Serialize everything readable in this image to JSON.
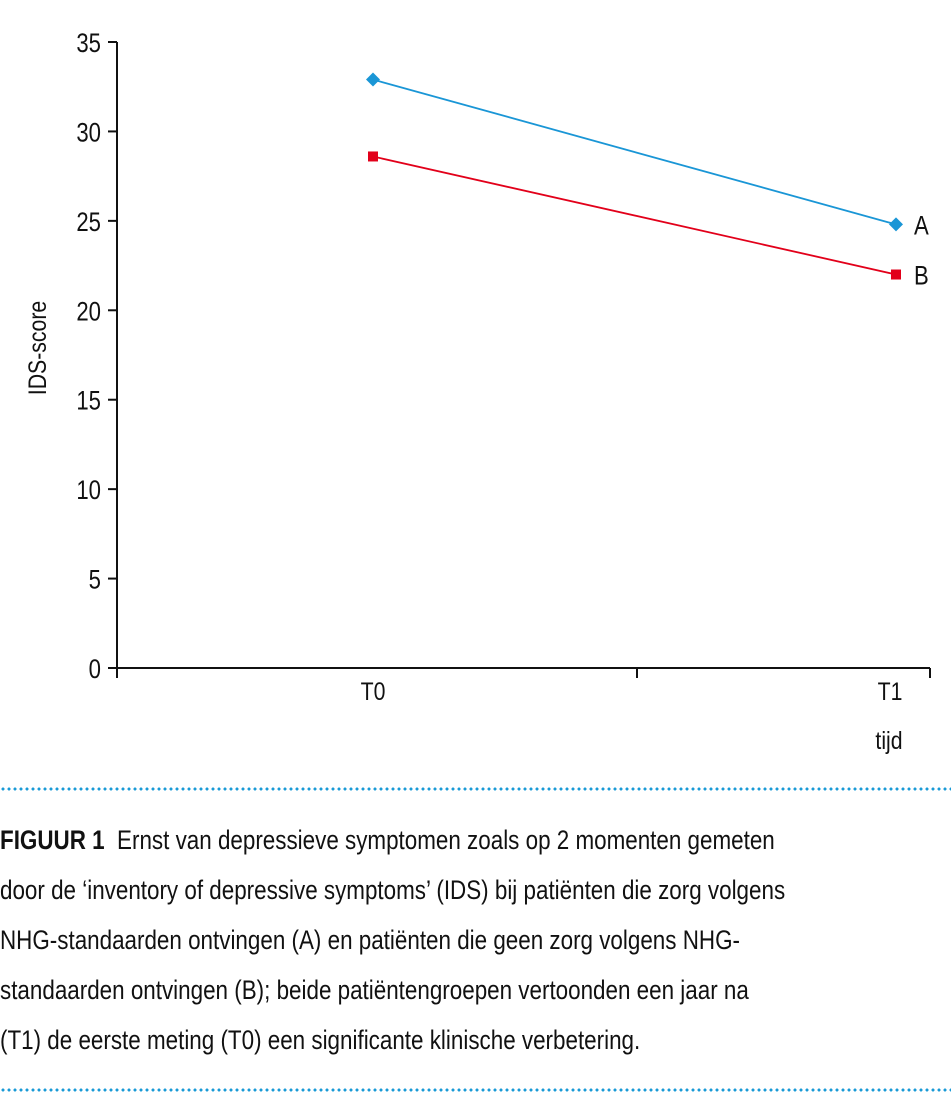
{
  "chart_data": {
    "type": "line",
    "title": "",
    "xlabel": "tijd",
    "ylabel": "IDS-score",
    "categories": [
      "T0",
      "T1"
    ],
    "ylim": [
      0,
      35
    ],
    "yticks": [
      0,
      5,
      10,
      15,
      20,
      25,
      30,
      35
    ],
    "ytick_labels": [
      "0",
      "5",
      "10",
      "15",
      "20",
      "25",
      "30",
      "35"
    ],
    "grid": false,
    "legend": "end-of-line labels, right",
    "series": [
      {
        "name": "A",
        "values": [
          32.9,
          24.8
        ],
        "color": "#1a96d6",
        "marker": "diamond"
      },
      {
        "name": "B",
        "values": [
          28.6,
          22.0
        ],
        "color": "#e2001a",
        "marker": "square"
      }
    ]
  },
  "caption": {
    "label": "FIGUUR 1",
    "lines": [
      "Ernst van depressieve symptomen zoals op 2 momenten gemeten",
      "door de ‘inventory of depressive symptoms’ (IDS) bij patiënten die zorg volgens",
      "NHG-standaarden ontvingen (A) en patiënten die geen zorg volgens NHG-",
      "standaarden ontvingen (B); beide patiëntengroepen vertoonden een jaar na",
      "(T1) de eerste meting (T0) een significante klinische verbetering."
    ]
  },
  "colors": {
    "divider": "#1a9ad6",
    "axis": "#111111"
  }
}
